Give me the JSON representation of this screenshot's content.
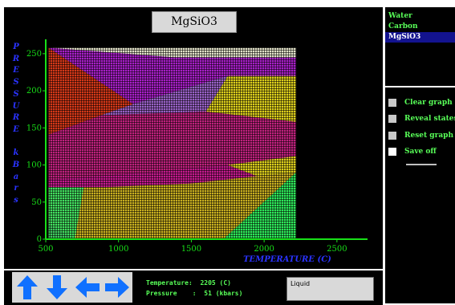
{
  "title": "MgSiO3",
  "solvers": [
    {
      "label": "Water",
      "selected": false
    },
    {
      "label": "Carbon",
      "selected": false
    },
    {
      "label": "MgSiO3",
      "selected": true
    }
  ],
  "options": [
    {
      "label": "Clear graph"
    },
    {
      "label": "Reveal states"
    },
    {
      "label": "Reset graph"
    },
    {
      "label": "Save off"
    }
  ],
  "readout": {
    "temperature_label": "Temperature",
    "temperature_value": "2205",
    "temperature_unit": "(C)",
    "pressure_label": "Pressure",
    "pressure_value": "51",
    "pressure_unit": "(kbars)"
  },
  "phase": "Liquid",
  "arrows": [
    {
      "name": "up-arrow-icon",
      "dir": "up"
    },
    {
      "name": "down-arrow-icon",
      "dir": "down"
    },
    {
      "name": "left-arrow-icon",
      "dir": "left"
    },
    {
      "name": "right-arrow-icon",
      "dir": "right"
    }
  ],
  "colors": {
    "axis": "#18e018",
    "axis_label": "#2a33ff",
    "readout_text": "#58ff58",
    "arrows": "#1070ff"
  },
  "chart_data": {
    "type": "heatmap",
    "xlabel": "TEMPERATURE (C)",
    "ylabel": "PRESSURE kBars",
    "xlim": [
      500,
      2600
    ],
    "ylim": [
      0,
      265
    ],
    "x_ticks": [
      500,
      1000,
      1500,
      2000,
      2500
    ],
    "y_ticks": [
      0,
      50,
      100,
      150,
      200,
      250
    ],
    "explored_range": {
      "x": [
        520,
        2220
      ],
      "y": [
        0,
        258
      ]
    },
    "regions": [
      {
        "color": "#e2e2c9",
        "polygon": [
          [
            520,
            258
          ],
          [
            2220,
            258
          ],
          [
            2220,
            245
          ],
          [
            1380,
            245
          ],
          [
            520,
            258
          ]
        ]
      },
      {
        "color": "#a81fc8",
        "polygon": [
          [
            520,
            258
          ],
          [
            1380,
            245
          ],
          [
            2220,
            245
          ],
          [
            2220,
            220
          ],
          [
            1750,
            220
          ],
          [
            1100,
            182
          ],
          [
            520,
            258
          ]
        ]
      },
      {
        "color": "#d53818",
        "polygon": [
          [
            520,
            258
          ],
          [
            1100,
            182
          ],
          [
            880,
            167
          ],
          [
            520,
            141
          ]
        ]
      },
      {
        "color": "#ddcf1c",
        "polygon": [
          [
            1750,
            220
          ],
          [
            2220,
            220
          ],
          [
            2220,
            158
          ],
          [
            1600,
            172
          ]
        ]
      },
      {
        "color": "#9a62c8",
        "polygon": [
          [
            1100,
            182
          ],
          [
            1750,
            220
          ],
          [
            1600,
            172
          ],
          [
            880,
            167
          ]
        ]
      },
      {
        "color": "#c0217e",
        "polygon": [
          [
            520,
            141
          ],
          [
            880,
            167
          ],
          [
            1600,
            172
          ],
          [
            2220,
            158
          ],
          [
            2220,
            112
          ],
          [
            1750,
            100
          ],
          [
            1200,
            90
          ],
          [
            520,
            80
          ],
          [
            520,
            141
          ]
        ]
      },
      {
        "color": "#c51a8e",
        "polygon": [
          [
            520,
            80
          ],
          [
            1200,
            90
          ],
          [
            1750,
            100
          ],
          [
            1950,
            85
          ],
          [
            1500,
            75
          ],
          [
            900,
            70
          ],
          [
            520,
            70
          ]
        ]
      },
      {
        "color": "#ddcf1c",
        "polygon": [
          [
            2220,
            112
          ],
          [
            2220,
            90
          ],
          [
            1950,
            85
          ],
          [
            1750,
            100
          ]
        ]
      },
      {
        "color": "#c9b020",
        "polygon": [
          [
            520,
            70
          ],
          [
            900,
            70
          ],
          [
            1500,
            75
          ],
          [
            1950,
            85
          ],
          [
            2220,
            90
          ],
          [
            1720,
            0
          ],
          [
            700,
            0
          ],
          [
            520,
            20
          ]
        ]
      },
      {
        "color": "#43e060",
        "polygon": [
          [
            520,
            70
          ],
          [
            760,
            70
          ],
          [
            700,
            0
          ],
          [
            520,
            0
          ]
        ]
      },
      {
        "color": "#2ee85a",
        "polygon": [
          [
            1720,
            0
          ],
          [
            2220,
            90
          ],
          [
            2220,
            0
          ]
        ]
      },
      {
        "color": "#40c860",
        "polygon": [
          [
            520,
            20
          ],
          [
            700,
            0
          ],
          [
            520,
            0
          ]
        ]
      }
    ]
  }
}
